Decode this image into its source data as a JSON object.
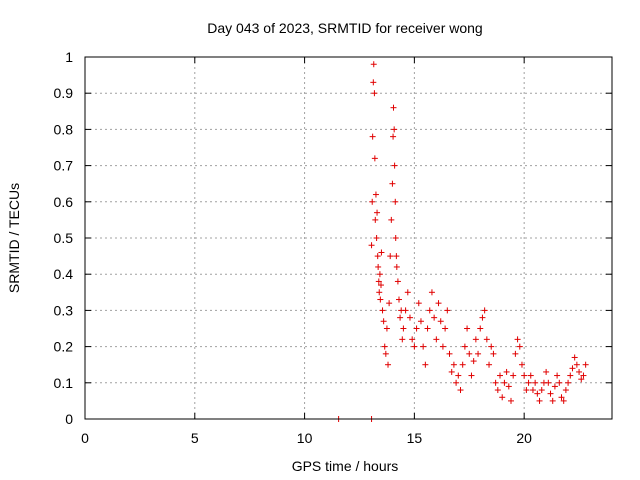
{
  "chart_data": {
    "type": "scatter",
    "title": "Day 043 of 2023, SRMTID for receiver wong",
    "xlabel": "GPS time / hours",
    "ylabel": "SRMTID / TECUs",
    "xlim": [
      0,
      24
    ],
    "ylim": [
      0,
      1
    ],
    "xticks": [
      0,
      5,
      10,
      15,
      20
    ],
    "yticks": [
      0,
      0.1,
      0.2,
      0.3,
      0.4,
      0.5,
      0.6,
      0.7,
      0.8,
      0.9,
      1
    ],
    "xtick_labels": [
      "0",
      "5",
      "10",
      "15",
      "20"
    ],
    "ytick_labels": [
      "0",
      "0.1",
      "0.2",
      "0.3",
      "0.4",
      "0.5",
      "0.6",
      "0.7",
      "0.8",
      "0.9",
      "1"
    ],
    "grid": true,
    "marker": "plus",
    "color": "#e00000",
    "series": [
      {
        "name": "SRMTID",
        "x": [
          11.55,
          13.05,
          13.05,
          13.08,
          13.1,
          13.13,
          13.15,
          13.18,
          13.2,
          13.22,
          13.25,
          13.28,
          13.3,
          13.33,
          13.35,
          13.38,
          13.4,
          13.43,
          13.45,
          13.48,
          13.5,
          13.55,
          13.6,
          13.65,
          13.7,
          13.75,
          13.8,
          13.85,
          13.9,
          13.95,
          14.0,
          14.03,
          14.05,
          14.08,
          14.1,
          14.13,
          14.15,
          14.18,
          14.2,
          14.25,
          14.3,
          14.35,
          14.4,
          14.45,
          14.5,
          14.6,
          14.7,
          14.8,
          14.9,
          15.0,
          15.1,
          15.2,
          15.3,
          15.4,
          15.5,
          15.6,
          15.7,
          15.8,
          15.9,
          16.0,
          16.1,
          16.2,
          16.3,
          16.4,
          16.5,
          16.6,
          16.7,
          16.8,
          16.9,
          17.0,
          17.1,
          17.2,
          17.3,
          17.4,
          17.5,
          17.6,
          17.7,
          17.8,
          17.9,
          18.0,
          18.1,
          18.2,
          18.3,
          18.4,
          18.5,
          18.6,
          18.7,
          18.8,
          18.9,
          19.0,
          19.1,
          19.2,
          19.3,
          19.4,
          19.5,
          19.6,
          19.7,
          19.8,
          19.9,
          20.0,
          20.1,
          20.2,
          20.3,
          20.4,
          20.5,
          20.6,
          20.7,
          20.8,
          20.9,
          21.0,
          21.1,
          21.2,
          21.3,
          21.4,
          21.5,
          21.6,
          21.7,
          21.8,
          21.9,
          22.0,
          22.1,
          22.2,
          22.3,
          22.4,
          22.5,
          22.6,
          22.7,
          22.8
        ],
        "y": [
          0.0,
          0.0,
          0.48,
          0.6,
          0.78,
          0.93,
          0.98,
          0.9,
          0.72,
          0.55,
          0.62,
          0.5,
          0.57,
          0.45,
          0.42,
          0.38,
          0.35,
          0.4,
          0.33,
          0.37,
          0.46,
          0.3,
          0.27,
          0.2,
          0.18,
          0.25,
          0.15,
          0.32,
          0.45,
          0.55,
          0.65,
          0.78,
          0.86,
          0.8,
          0.7,
          0.6,
          0.5,
          0.45,
          0.42,
          0.38,
          0.33,
          0.28,
          0.3,
          0.22,
          0.25,
          0.3,
          0.35,
          0.28,
          0.22,
          0.2,
          0.25,
          0.32,
          0.27,
          0.2,
          0.15,
          0.25,
          0.3,
          0.35,
          0.28,
          0.22,
          0.32,
          0.27,
          0.2,
          0.25,
          0.3,
          0.18,
          0.13,
          0.15,
          0.1,
          0.12,
          0.08,
          0.15,
          0.2,
          0.25,
          0.18,
          0.12,
          0.16,
          0.22,
          0.18,
          0.25,
          0.28,
          0.3,
          0.22,
          0.15,
          0.2,
          0.18,
          0.1,
          0.08,
          0.12,
          0.06,
          0.1,
          0.13,
          0.09,
          0.05,
          0.12,
          0.18,
          0.22,
          0.2,
          0.15,
          0.12,
          0.08,
          0.1,
          0.12,
          0.08,
          0.1,
          0.07,
          0.05,
          0.08,
          0.1,
          0.13,
          0.1,
          0.07,
          0.05,
          0.09,
          0.12,
          0.1,
          0.06,
          0.05,
          0.08,
          0.1,
          0.12,
          0.14,
          0.17,
          0.15,
          0.13,
          0.11,
          0.12,
          0.15
        ]
      }
    ]
  }
}
